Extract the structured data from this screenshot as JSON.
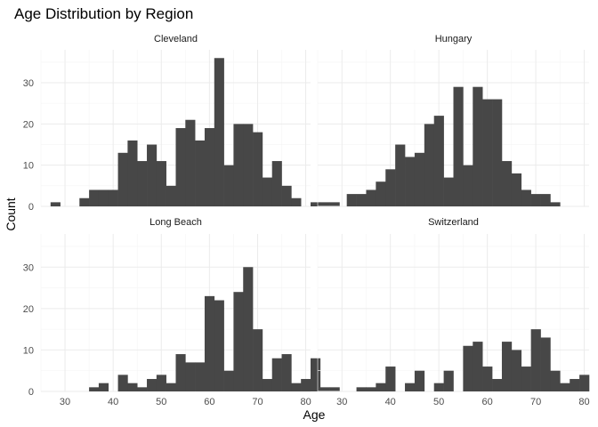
{
  "chart_data": {
    "type": "bar",
    "title": "Age Distribution by Region",
    "xlabel": "Age",
    "ylabel": "Count",
    "bin_width": 2,
    "first_bin_start": 27,
    "xlim": [
      25,
      81
    ],
    "ylim": [
      0,
      38
    ],
    "x_ticks": [
      30,
      40,
      50,
      60,
      70,
      80
    ],
    "y_ticks": [
      0,
      10,
      20,
      30
    ],
    "grid": true,
    "bar_color": "#474747",
    "facets": [
      {
        "name": "Cleveland",
        "counts": [
          1,
          0,
          0,
          2,
          4,
          4,
          4,
          13,
          16,
          11,
          15,
          11,
          5,
          19,
          21,
          16,
          19,
          36,
          10,
          20,
          20,
          18,
          7,
          11,
          5,
          2,
          0,
          1,
          1,
          1
        ]
      },
      {
        "name": "Hungary",
        "counts": [
          0,
          0,
          3,
          3,
          4,
          6,
          9,
          15,
          12,
          13,
          20,
          22,
          7,
          29,
          10,
          29,
          26,
          26,
          11,
          8,
          4,
          3,
          3,
          1,
          0,
          0,
          0,
          0,
          0,
          0
        ]
      },
      {
        "name": "Long Beach",
        "counts": [
          0,
          0,
          0,
          0,
          1,
          2,
          0,
          4,
          2,
          1,
          3,
          4,
          2,
          9,
          7,
          7,
          23,
          22,
          5,
          24,
          30,
          15,
          3,
          8,
          9,
          2,
          3,
          8,
          1,
          1
        ]
      },
      {
        "name": "Switzerland",
        "counts": [
          0,
          0,
          0,
          1,
          1,
          2,
          6,
          0,
          2,
          5,
          0,
          2,
          5,
          0,
          11,
          12,
          6,
          3,
          12,
          10,
          6,
          15,
          13,
          5,
          2,
          3,
          4,
          0,
          2,
          1
        ]
      }
    ]
  }
}
